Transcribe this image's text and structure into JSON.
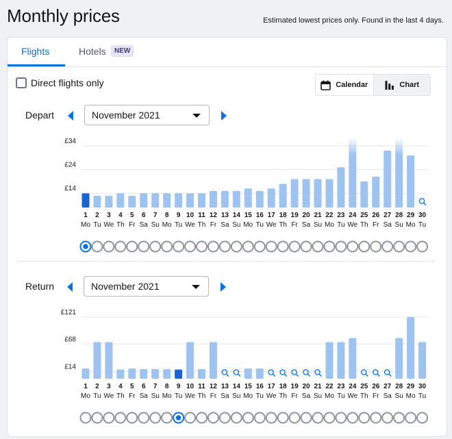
{
  "header": {
    "title": "Monthly prices",
    "note": "Estimated lowest prices only. Found in the last 4 days."
  },
  "tabs": [
    {
      "label": "Flights",
      "active": true
    },
    {
      "label": "Hotels",
      "badge": "NEW",
      "active": false
    }
  ],
  "filters": {
    "direct_flights_label": "Direct flights only",
    "direct_flights_checked": false
  },
  "view_toggle": {
    "calendar_label": "Calendar",
    "chart_label": "Chart",
    "active": "chart"
  },
  "colors": {
    "accent": "#0770e3",
    "bar": "#9fc3f0",
    "bar_selected": "#1a63d6",
    "grid": "#e1e4e8",
    "circle": "#8e939c"
  },
  "weekday_labels": [
    "Mo",
    "Tu",
    "We",
    "Th",
    "Fr",
    "Sa",
    "Su",
    "Mo",
    "Tu",
    "We",
    "Th",
    "Fr",
    "Sa",
    "Su",
    "Mo",
    "Tu",
    "We",
    "Th",
    "Fr",
    "Sa",
    "Su",
    "Mo",
    "Tu",
    "We",
    "Th",
    "Fr",
    "Sa",
    "Su",
    "Mo",
    "Tu"
  ],
  "depart": {
    "label": "Depart",
    "month": "November 2021",
    "selected_day": 1
  },
  "return": {
    "label": "Return",
    "month": "November 2021",
    "selected_day": 9
  },
  "chart_data": [
    {
      "type": "bar",
      "title": "Depart",
      "categories": [
        "1",
        "2",
        "3",
        "4",
        "5",
        "6",
        "7",
        "8",
        "9",
        "10",
        "11",
        "12",
        "13",
        "14",
        "15",
        "16",
        "17",
        "18",
        "19",
        "20",
        "21",
        "22",
        "23",
        "24",
        "25",
        "26",
        "27",
        "28",
        "29",
        "30"
      ],
      "yticks": [
        "£14",
        "£24",
        "£34"
      ],
      "ytick_values": [
        14,
        24,
        34
      ],
      "ylim": [
        8,
        34
      ],
      "values": [
        14,
        13,
        13,
        14,
        13,
        14,
        14,
        14,
        14,
        14,
        14,
        15,
        15,
        15,
        16,
        15,
        16,
        18,
        20,
        20,
        20,
        20,
        25,
        34,
        19,
        21,
        32,
        34,
        30,
        null
      ],
      "overflow_days": [
        24,
        28
      ],
      "no_price_days": [
        30
      ],
      "selected_day": 1
    },
    {
      "type": "bar",
      "title": "Return",
      "categories": [
        "1",
        "2",
        "3",
        "4",
        "5",
        "6",
        "7",
        "8",
        "9",
        "10",
        "11",
        "12",
        "13",
        "14",
        "15",
        "16",
        "17",
        "18",
        "19",
        "20",
        "21",
        "22",
        "23",
        "24",
        "25",
        "26",
        "27",
        "28",
        "29",
        "30"
      ],
      "yticks": [
        "£14",
        "£68",
        "£121"
      ],
      "ytick_values": [
        14,
        68,
        121
      ],
      "ylim": [
        0,
        121
      ],
      "values": [
        20,
        72,
        72,
        18,
        20,
        19,
        19,
        19,
        18,
        72,
        19,
        72,
        null,
        null,
        20,
        20,
        null,
        null,
        null,
        null,
        null,
        72,
        72,
        80,
        null,
        null,
        null,
        80,
        121,
        72
      ],
      "no_price_days": [
        13,
        14,
        17,
        18,
        19,
        20,
        21,
        25,
        26,
        27
      ],
      "selected_day": 9
    }
  ]
}
